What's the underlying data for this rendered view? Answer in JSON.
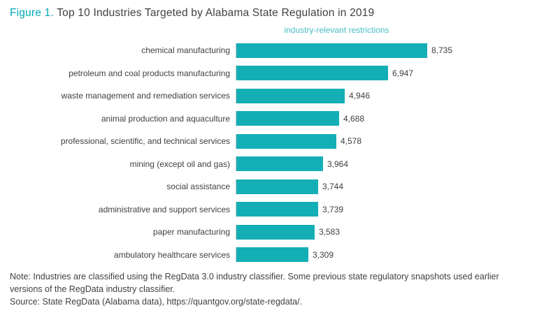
{
  "figure": {
    "label": "Figure 1.",
    "title": " Top 10 Industries Targeted by Alabama State Regulation in 2019"
  },
  "chart_data": {
    "type": "bar",
    "orientation": "horizontal",
    "title": "Top 10 Industries Targeted by Alabama State Regulation in 2019",
    "xlabel": "industry-relevant restrictions",
    "ylabel": "",
    "xlim": [
      0,
      9000
    ],
    "grid": false,
    "legend": "none",
    "bar_color": "#14aeb5",
    "categories": [
      "chemical manufacturing",
      "petroleum and coal products manufacturing",
      "waste management and remediation services",
      "animal production and aquaculture",
      "professional, scientific, and technical services",
      "mining (except oil and gas)",
      "social assistance",
      "administrative and support services",
      "paper manufacturing",
      "ambulatory healthcare services"
    ],
    "values": [
      8735,
      6947,
      4946,
      4688,
      4578,
      3964,
      3744,
      3739,
      3583,
      3309
    ],
    "value_labels": [
      "8,735",
      "6,947",
      "4,946",
      "4,688",
      "4,578",
      "3,964",
      "3,744",
      "3,739",
      "3,583",
      "3,309"
    ]
  },
  "notes": {
    "note": "Note: Industries are classified using the RegData 3.0 industry classifier. Some previous state regulatory snapshots used earlier versions of the RegData industry classifier.",
    "source": "Source: State RegData (Alabama data), https://quantgov.org/state-regdata/."
  }
}
